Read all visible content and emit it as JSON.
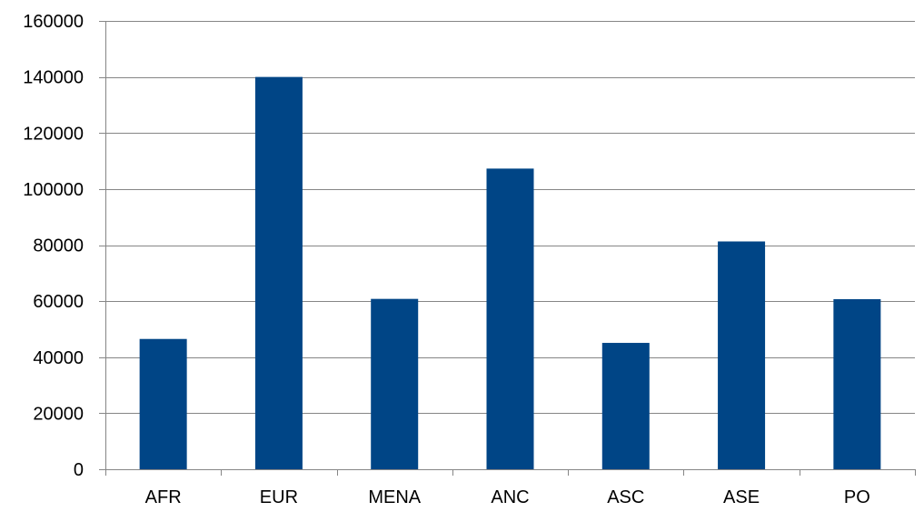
{
  "chart_data": {
    "type": "bar",
    "title": "",
    "xlabel": "",
    "ylabel": "",
    "categories": [
      "AFR",
      "EUR",
      "MENA",
      "ANC",
      "ASC",
      "ASE",
      "PO"
    ],
    "values": [
      46500,
      140000,
      60800,
      107300,
      45100,
      81300,
      60700
    ],
    "ylim": [
      0,
      160000
    ],
    "yticks": [
      0,
      20000,
      40000,
      60000,
      80000,
      100000,
      120000,
      140000,
      160000
    ],
    "ytick_labels": [
      "0",
      "20000",
      "40000",
      "60000",
      "80000",
      "100000",
      "120000",
      "140000",
      "160000"
    ],
    "grid": true,
    "legend": false,
    "colors": {
      "bar": "#004586",
      "grid": "#868686",
      "axis": "#868686",
      "text": "#000000"
    }
  }
}
